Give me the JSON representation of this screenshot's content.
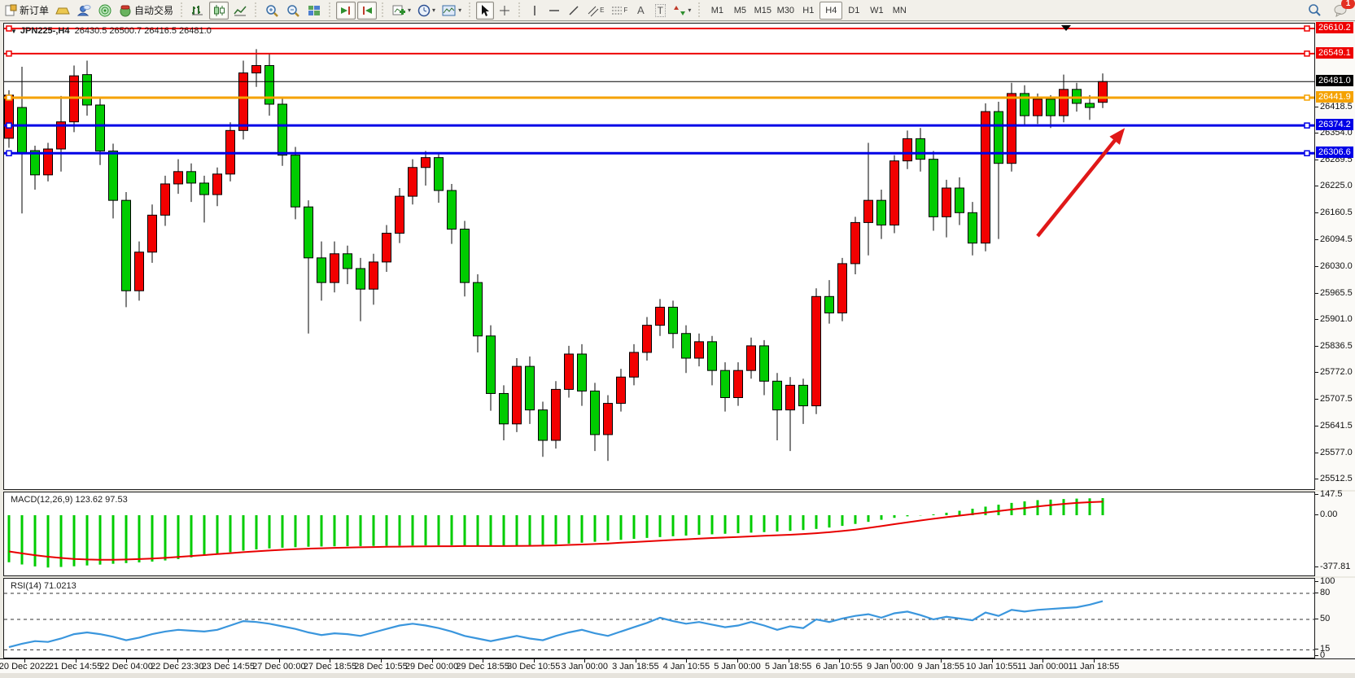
{
  "toolbar": {
    "new_order_label": "新订单",
    "autotrade_label": "自动交易",
    "text_tool_glyph": "A",
    "label_tool_glyph": "T",
    "channel_glyph": "E",
    "fibo_glyph": "F",
    "timeframes": [
      "M1",
      "M5",
      "M15",
      "M30",
      "H1",
      "H4",
      "D1",
      "W1",
      "MN"
    ],
    "active_timeframe": "H4",
    "notification_count": "1"
  },
  "header": {
    "symbol_period": "JPN225-,H4",
    "ohlc_text": "26430.5 26500.7 26416.5 26481.0"
  },
  "chart_data": {
    "type": "candlestick",
    "symbol": "JPN225-",
    "timeframe": "H4",
    "bull_color": "#f20000",
    "bear_color": "#00cc00",
    "last_bar": {
      "open": 26430.5,
      "high": 26500.7,
      "low": 26416.5,
      "close": 26481.0
    },
    "candles": [
      [
        26343,
        26460,
        26320,
        26448
      ],
      [
        26418,
        26517,
        26160,
        26308
      ],
      [
        26313,
        26325,
        26218,
        26254
      ],
      [
        26254,
        26332,
        26238,
        26317
      ],
      [
        26317,
        26446,
        26262,
        26383
      ],
      [
        26383,
        26520,
        26358,
        26495
      ],
      [
        26498,
        26532,
        26398,
        26424
      ],
      [
        26424,
        26442,
        26278,
        26312
      ],
      [
        26312,
        26330,
        26148,
        26192
      ],
      [
        26192,
        26212,
        25932,
        25972
      ],
      [
        25972,
        26092,
        25948,
        26066
      ],
      [
        26066,
        26182,
        26040,
        26156
      ],
      [
        26156,
        26252,
        26130,
        26232
      ],
      [
        26232,
        26292,
        26208,
        26262
      ],
      [
        26262,
        26282,
        26188,
        26234
      ],
      [
        26234,
        26252,
        26138,
        26206
      ],
      [
        26206,
        26272,
        26178,
        26256
      ],
      [
        26256,
        26382,
        26238,
        26362
      ],
      [
        26362,
        26532,
        26340,
        26502
      ],
      [
        26502,
        26560,
        26468,
        26520
      ],
      [
        26520,
        26548,
        26398,
        26426
      ],
      [
        26426,
        26442,
        26276,
        26302
      ],
      [
        26302,
        26322,
        26146,
        26176
      ],
      [
        26176,
        26192,
        25868,
        26052
      ],
      [
        26052,
        26092,
        25948,
        25992
      ],
      [
        25992,
        26092,
        25968,
        26062
      ],
      [
        26062,
        26082,
        25988,
        26026
      ],
      [
        26026,
        26052,
        25898,
        25976
      ],
      [
        25976,
        26062,
        25938,
        26042
      ],
      [
        26042,
        26132,
        26018,
        26112
      ],
      [
        26112,
        26222,
        26088,
        26202
      ],
      [
        26202,
        26292,
        26182,
        26272
      ],
      [
        26272,
        26312,
        26228,
        26296
      ],
      [
        26296,
        26308,
        26186,
        26216
      ],
      [
        26216,
        26232,
        26086,
        26122
      ],
      [
        26122,
        26142,
        25958,
        25992
      ],
      [
        25992,
        26012,
        25822,
        25862
      ],
      [
        25862,
        25888,
        25680,
        25722
      ],
      [
        25722,
        25742,
        25608,
        25648
      ],
      [
        25648,
        25808,
        25628,
        25788
      ],
      [
        25788,
        25812,
        25648,
        25682
      ],
      [
        25682,
        25702,
        25568,
        25608
      ],
      [
        25608,
        25752,
        25588,
        25732
      ],
      [
        25732,
        25838,
        25712,
        25818
      ],
      [
        25818,
        25842,
        25692,
        25728
      ],
      [
        25728,
        25748,
        25582,
        25622
      ],
      [
        25622,
        25718,
        25558,
        25698
      ],
      [
        25698,
        25782,
        25678,
        25762
      ],
      [
        25762,
        25842,
        25742,
        25822
      ],
      [
        25822,
        25908,
        25802,
        25888
      ],
      [
        25888,
        25952,
        25862,
        25932
      ],
      [
        25932,
        25948,
        25832,
        25868
      ],
      [
        25868,
        25888,
        25772,
        25808
      ],
      [
        25808,
        25868,
        25788,
        25848
      ],
      [
        25848,
        25862,
        25742,
        25778
      ],
      [
        25778,
        25798,
        25678,
        25712
      ],
      [
        25712,
        25798,
        25692,
        25778
      ],
      [
        25778,
        25858,
        25758,
        25838
      ],
      [
        25838,
        25852,
        25718,
        25752
      ],
      [
        25752,
        25772,
        25608,
        25682
      ],
      [
        25682,
        25762,
        25582,
        25742
      ],
      [
        25742,
        25758,
        25648,
        25692
      ],
      [
        25692,
        25978,
        25672,
        25958
      ],
      [
        25958,
        25998,
        25892,
        25918
      ],
      [
        25918,
        26052,
        25898,
        26038
      ],
      [
        26038,
        26152,
        26012,
        26138
      ],
      [
        26138,
        26332,
        26058,
        26192
      ],
      [
        26192,
        26218,
        26098,
        26132
      ],
      [
        26132,
        26302,
        26112,
        26288
      ],
      [
        26288,
        26362,
        26268,
        26342
      ],
      [
        26342,
        26368,
        26262,
        26292
      ],
      [
        26292,
        26312,
        26118,
        26152
      ],
      [
        26152,
        26242,
        26102,
        26222
      ],
      [
        26222,
        26248,
        26132,
        26162
      ],
      [
        26162,
        26188,
        26058,
        26088
      ],
      [
        26088,
        26428,
        26068,
        26408
      ],
      [
        26408,
        26432,
        26098,
        26282
      ],
      [
        26282,
        26478,
        26262,
        26452
      ],
      [
        26452,
        26472,
        26372,
        26398
      ],
      [
        26398,
        26452,
        26378,
        26438
      ],
      [
        26438,
        26448,
        26368,
        26398
      ],
      [
        26398,
        26498,
        26382,
        26462
      ],
      [
        26462,
        26478,
        26408,
        26428
      ],
      [
        26428,
        26448,
        26388,
        26418
      ],
      [
        26430.5,
        26500.7,
        26416.5,
        26481.0
      ]
    ],
    "price_ticks": [
      26418.5,
      26354.0,
      26289.5,
      26225.0,
      26160.5,
      26094.5,
      26030.0,
      25965.5,
      25901.0,
      25836.5,
      25772.0,
      25707.5,
      25641.5,
      25577.0,
      25512.5
    ],
    "price_tick_labels": [
      "26418.5",
      "26354.0",
      "26289.5",
      "26225.0",
      "26160.5",
      "26094.5",
      "26030.0",
      "25965.5",
      "25901.0",
      "25836.5",
      "25772.0",
      "25707.5",
      "25641.5",
      "25577.0",
      "25512.5"
    ],
    "level_lines": [
      {
        "price": 26610.2,
        "label": "26610.2",
        "color": "#ee0000",
        "width": 2
      },
      {
        "price": 26549.1,
        "label": "26549.1",
        "color": "#ee0000",
        "width": 2
      },
      {
        "price": 26441.9,
        "label": "26441.9",
        "color": "#f5a200",
        "width": 3
      },
      {
        "price": 26374.2,
        "label": "26374.2",
        "color": "#0000e6",
        "width": 3
      },
      {
        "price": 26306.6,
        "label": "26306.6",
        "color": "#0000e6",
        "width": 3
      }
    ],
    "current_price_line": {
      "price": 26481.0,
      "label": "26481.0",
      "color": "#000000",
      "width": 1
    },
    "time_labels": [
      "20 Dec 2022",
      "21 Dec 14:55",
      "22 Dec 04:00",
      "22 Dec 23:30",
      "23 Dec 14:55",
      "27 Dec 00:00",
      "27 Dec 18:55",
      "28 Dec 10:55",
      "29 Dec 00:00",
      "29 Dec 18:55",
      "30 Dec 10:55",
      "3 Jan 00:00",
      "3 Jan 18:55",
      "4 Jan 10:55",
      "5 Jan 00:00",
      "5 Jan 18:55",
      "6 Jan 10:55",
      "9 Jan 00:00",
      "9 Jan 18:55",
      "10 Jan 10:55",
      "11 Jan 00:00",
      "11 Jan 18:55"
    ],
    "arrow_annotation": {
      "from_bar": 79,
      "from_price": 26105,
      "to_bar": 85.7,
      "to_price": 26368,
      "color": "#e01818"
    },
    "macd": {
      "label": "MACD(12,26,9) 123.62 97.53",
      "value": 123.62,
      "signal_value": 97.53,
      "scale_values": [
        147.5,
        0,
        -377.81
      ],
      "scale_labels": [
        "147.5",
        "0.00",
        "-377.81"
      ],
      "histogram_color": "#00cc00",
      "signal_color": "#e80000",
      "histogram": [
        -340,
        -356,
        -370,
        -378,
        -374,
        -369,
        -363,
        -357,
        -351,
        -346,
        -341,
        -335,
        -327,
        -317,
        -305,
        -292,
        -279,
        -267,
        -256,
        -247,
        -240,
        -235,
        -231,
        -228,
        -226,
        -225,
        -224,
        -223,
        -222,
        -221,
        -220,
        -219,
        -218,
        -217,
        -217,
        -218,
        -219,
        -220,
        -220,
        -219,
        -217,
        -214,
        -210,
        -205,
        -199,
        -192,
        -185,
        -178,
        -171,
        -164,
        -158,
        -152,
        -147,
        -142,
        -138,
        -134,
        -130,
        -126,
        -122,
        -118,
        -113,
        -107,
        -99,
        -89,
        -77,
        -63,
        -48,
        -33,
        -19,
        -8,
        -2,
        6,
        18,
        32,
        47,
        62,
        76,
        89,
        100,
        109,
        113,
        117,
        120,
        122,
        123.62
      ],
      "signal": [
        -262,
        -276,
        -289,
        -300,
        -309,
        -316,
        -320,
        -322,
        -322,
        -320,
        -317,
        -313,
        -308,
        -302,
        -295,
        -288,
        -281,
        -274,
        -267,
        -261,
        -255,
        -250,
        -246,
        -242,
        -239,
        -236,
        -234,
        -232,
        -230,
        -228,
        -227,
        -226,
        -225,
        -224,
        -224,
        -223,
        -223,
        -223,
        -223,
        -222,
        -221,
        -220,
        -218,
        -215,
        -212,
        -208,
        -204,
        -199,
        -194,
        -189,
        -184,
        -179,
        -174,
        -169,
        -165,
        -161,
        -157,
        -153,
        -149,
        -145,
        -141,
        -136,
        -130,
        -123,
        -114,
        -104,
        -92,
        -79,
        -65,
        -51,
        -38,
        -26,
        -14,
        -3,
        8,
        19,
        30,
        41,
        52,
        63,
        73,
        82,
        89,
        94,
        97.53
      ]
    },
    "rsi": {
      "label": "RSI(14) 71.0213",
      "value": 71.0213,
      "line_color": "#3a96dd",
      "dashed_levels": [
        80,
        50,
        15
      ],
      "scale_values": [
        100,
        80,
        50,
        15,
        0
      ],
      "scale_labels": [
        "100",
        "80",
        "50",
        "15",
        "0"
      ],
      "series": [
        18,
        22,
        25,
        24,
        28,
        33,
        35,
        33,
        30,
        26,
        29,
        33,
        36,
        38,
        37,
        36,
        38,
        43,
        48,
        47,
        45,
        42,
        39,
        35,
        32,
        34,
        33,
        31,
        35,
        39,
        43,
        45,
        43,
        40,
        36,
        31,
        28,
        25,
        28,
        31,
        28,
        26,
        31,
        35,
        38,
        34,
        31,
        36,
        41,
        46,
        52,
        48,
        45,
        47,
        44,
        41,
        43,
        47,
        43,
        38,
        42,
        40,
        50,
        47,
        51,
        54,
        56,
        52,
        57,
        59,
        55,
        50,
        53,
        51,
        49,
        58,
        54,
        61,
        59,
        61,
        62,
        63,
        64,
        67,
        71.02
      ]
    }
  }
}
